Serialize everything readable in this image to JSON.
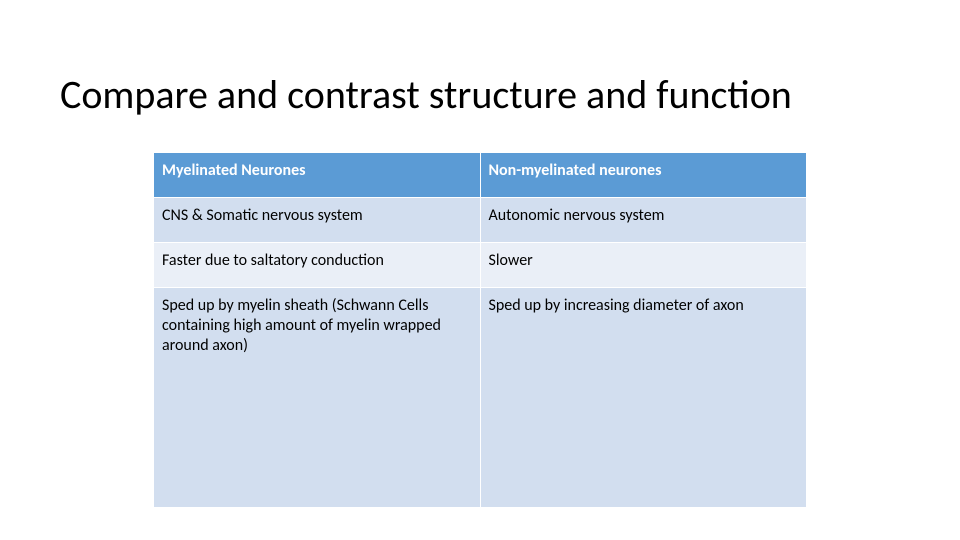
{
  "title": "Compare and contrast structure and function",
  "table": {
    "type": "table",
    "background_color": "#ffffff",
    "header_bg": "#5b9bd5",
    "header_text_color": "#ffffff",
    "band_colors": [
      "#d2deef",
      "#eaeff7"
    ],
    "border_color": "#ffffff",
    "font_family": "Calibri",
    "header_fontsize_pt": 12,
    "cell_fontsize_pt": 12,
    "column_widths_pct": [
      50,
      50
    ],
    "columns": [
      "Myelinated Neurones",
      "Non-myelinated neurones"
    ],
    "rows": [
      [
        "CNS & Somatic nervous system",
        "Autonomic nervous system"
      ],
      [
        "Faster due to saltatory conduction",
        "Slower"
      ],
      [
        "Sped up by myelin sheath (Schwann Cells containing high amount of myelin wrapped around axon)",
        "Sped up by increasing diameter of axon"
      ]
    ]
  }
}
